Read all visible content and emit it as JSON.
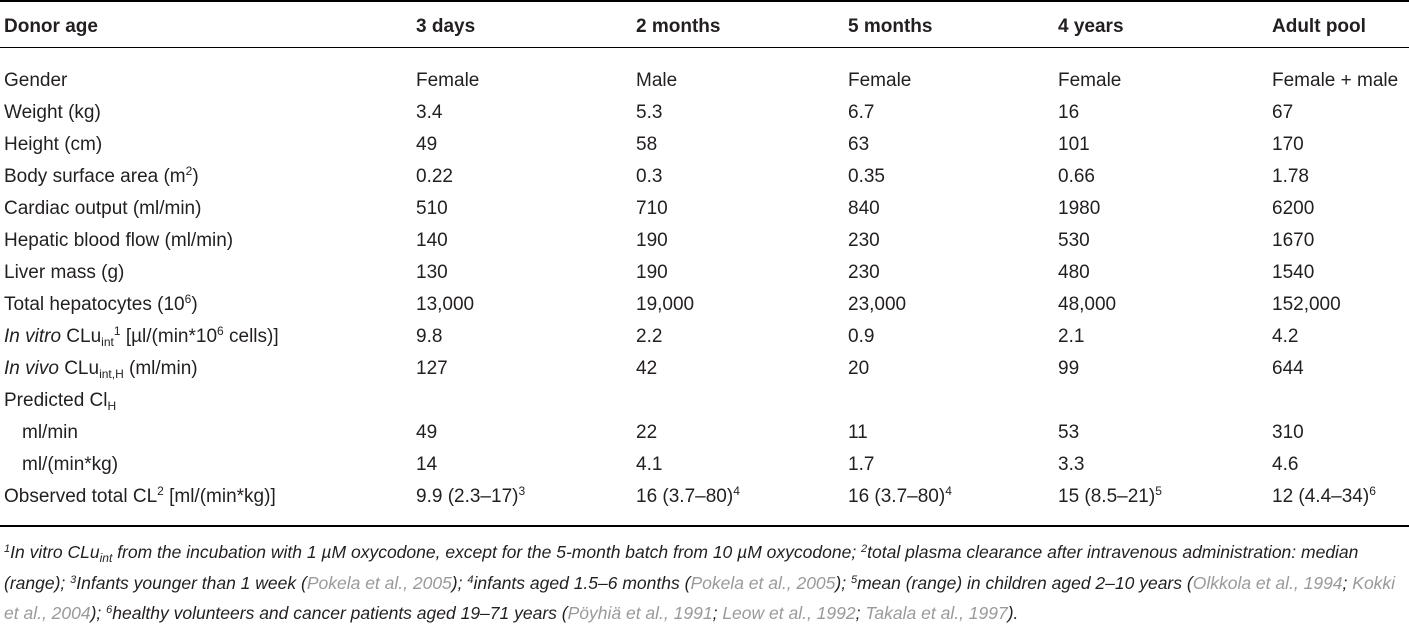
{
  "table": {
    "headers": [
      "Donor age",
      "3 days",
      "2 months",
      "5 months",
      "4 years",
      "Adult pool"
    ],
    "rows": [
      {
        "label": "Gender",
        "values": [
          "Female",
          "Male",
          "Female",
          "Female",
          "Female + male"
        ]
      },
      {
        "label": "Weight (kg)",
        "values": [
          "3.4",
          "5.3",
          "6.7",
          "16",
          "67"
        ]
      },
      {
        "label": "Height (cm)",
        "values": [
          "49",
          "58",
          "63",
          "101",
          "170"
        ]
      },
      {
        "label_pre": "Body surface area (m",
        "label_sup": "2",
        "label_post": ")",
        "values": [
          "0.22",
          "0.3",
          "0.35",
          "0.66",
          "1.78"
        ]
      },
      {
        "label": "Cardiac output (ml/min)",
        "values": [
          "510",
          "710",
          "840",
          "1980",
          "6200"
        ]
      },
      {
        "label": "Hepatic blood flow (ml/min)",
        "values": [
          "140",
          "190",
          "230",
          "530",
          "1670"
        ]
      },
      {
        "label": "Liver mass (g)",
        "values": [
          "130",
          "190",
          "230",
          "480",
          "1540"
        ]
      },
      {
        "label_pre": "Total hepatocytes (10",
        "label_sup": "6",
        "label_post": ")",
        "values": [
          "13,000",
          "19,000",
          "23,000",
          "48,000",
          "152,000"
        ]
      },
      {
        "label_it": "In vitro",
        "label_pre": " CLu",
        "label_sub": "int",
        "label_sup": "1",
        "label_post": " [µl/(min*10",
        "label_sup2": "6",
        "label_post2": " cells)]",
        "values": [
          "9.8",
          "2.2",
          "0.9",
          "2.1",
          "4.2"
        ]
      },
      {
        "label_it": "In vivo",
        "label_pre": " CLu",
        "label_sub": "int,H",
        "label_post": " (ml/min)",
        "values": [
          "127",
          "42",
          "20",
          "99",
          "644"
        ]
      },
      {
        "label_pre": "Predicted Cl",
        "label_sub": "H",
        "values": [
          "",
          "",
          "",
          "",
          ""
        ]
      },
      {
        "label": "ml/min",
        "indent": true,
        "values": [
          "49",
          "22",
          "11",
          "53",
          "310"
        ]
      },
      {
        "label": "ml/(min*kg)",
        "indent": true,
        "values": [
          "14",
          "4.1",
          "1.7",
          "3.3",
          "4.6"
        ]
      },
      {
        "label_pre": "Observed total CL",
        "label_sup": "2",
        "label_post": " [ml/(min*kg)]",
        "values": [
          "9.9 (2.3–17)",
          "16 (3.7–80)",
          "16 (3.7–80)",
          "15 (8.5–21)",
          "12 (4.4–34)"
        ],
        "value_sups": [
          "3",
          "4",
          "4",
          "5",
          "6"
        ]
      }
    ]
  },
  "footnote": {
    "n1_sup": "1",
    "n1_a": "In vitro CLu",
    "n1_sub": "int",
    "n1_b": " from the incubation with 1 µM oxycodone, except for the 5-month batch from 10 µM oxycodone; ",
    "n2_sup": "2",
    "n2": "total plasma clearance after intravenous administration: median (range); ",
    "n3_sup": "3",
    "n3_a": "Infants younger than 1 week (",
    "ref_pokela1": "Pokela et al., 2005",
    "n3_b": "); ",
    "n4_sup": "4",
    "n4_a": "infants aged 1.5–6 months (",
    "ref_pokela2": "Pokela et al., 2005",
    "n4_b": "); ",
    "n5_sup": "5",
    "n5_a": "mean (range) in children aged 2–10 years (",
    "ref_olkkola": "Olkkola et al., 1994",
    "sep1": "; ",
    "ref_kokki": "Kokki et al., 2004",
    "n5_b": "); ",
    "n6_sup": "6",
    "n6_a": "healthy volunteers and cancer patients aged 19–71 years (",
    "ref_poyhia": "Pöyhiä et al., 1991",
    "sep2": "; ",
    "ref_leow": "Leow et al., 1992",
    "sep3": "; ",
    "ref_takala": "Takala et al., 1997",
    "end": ")."
  }
}
